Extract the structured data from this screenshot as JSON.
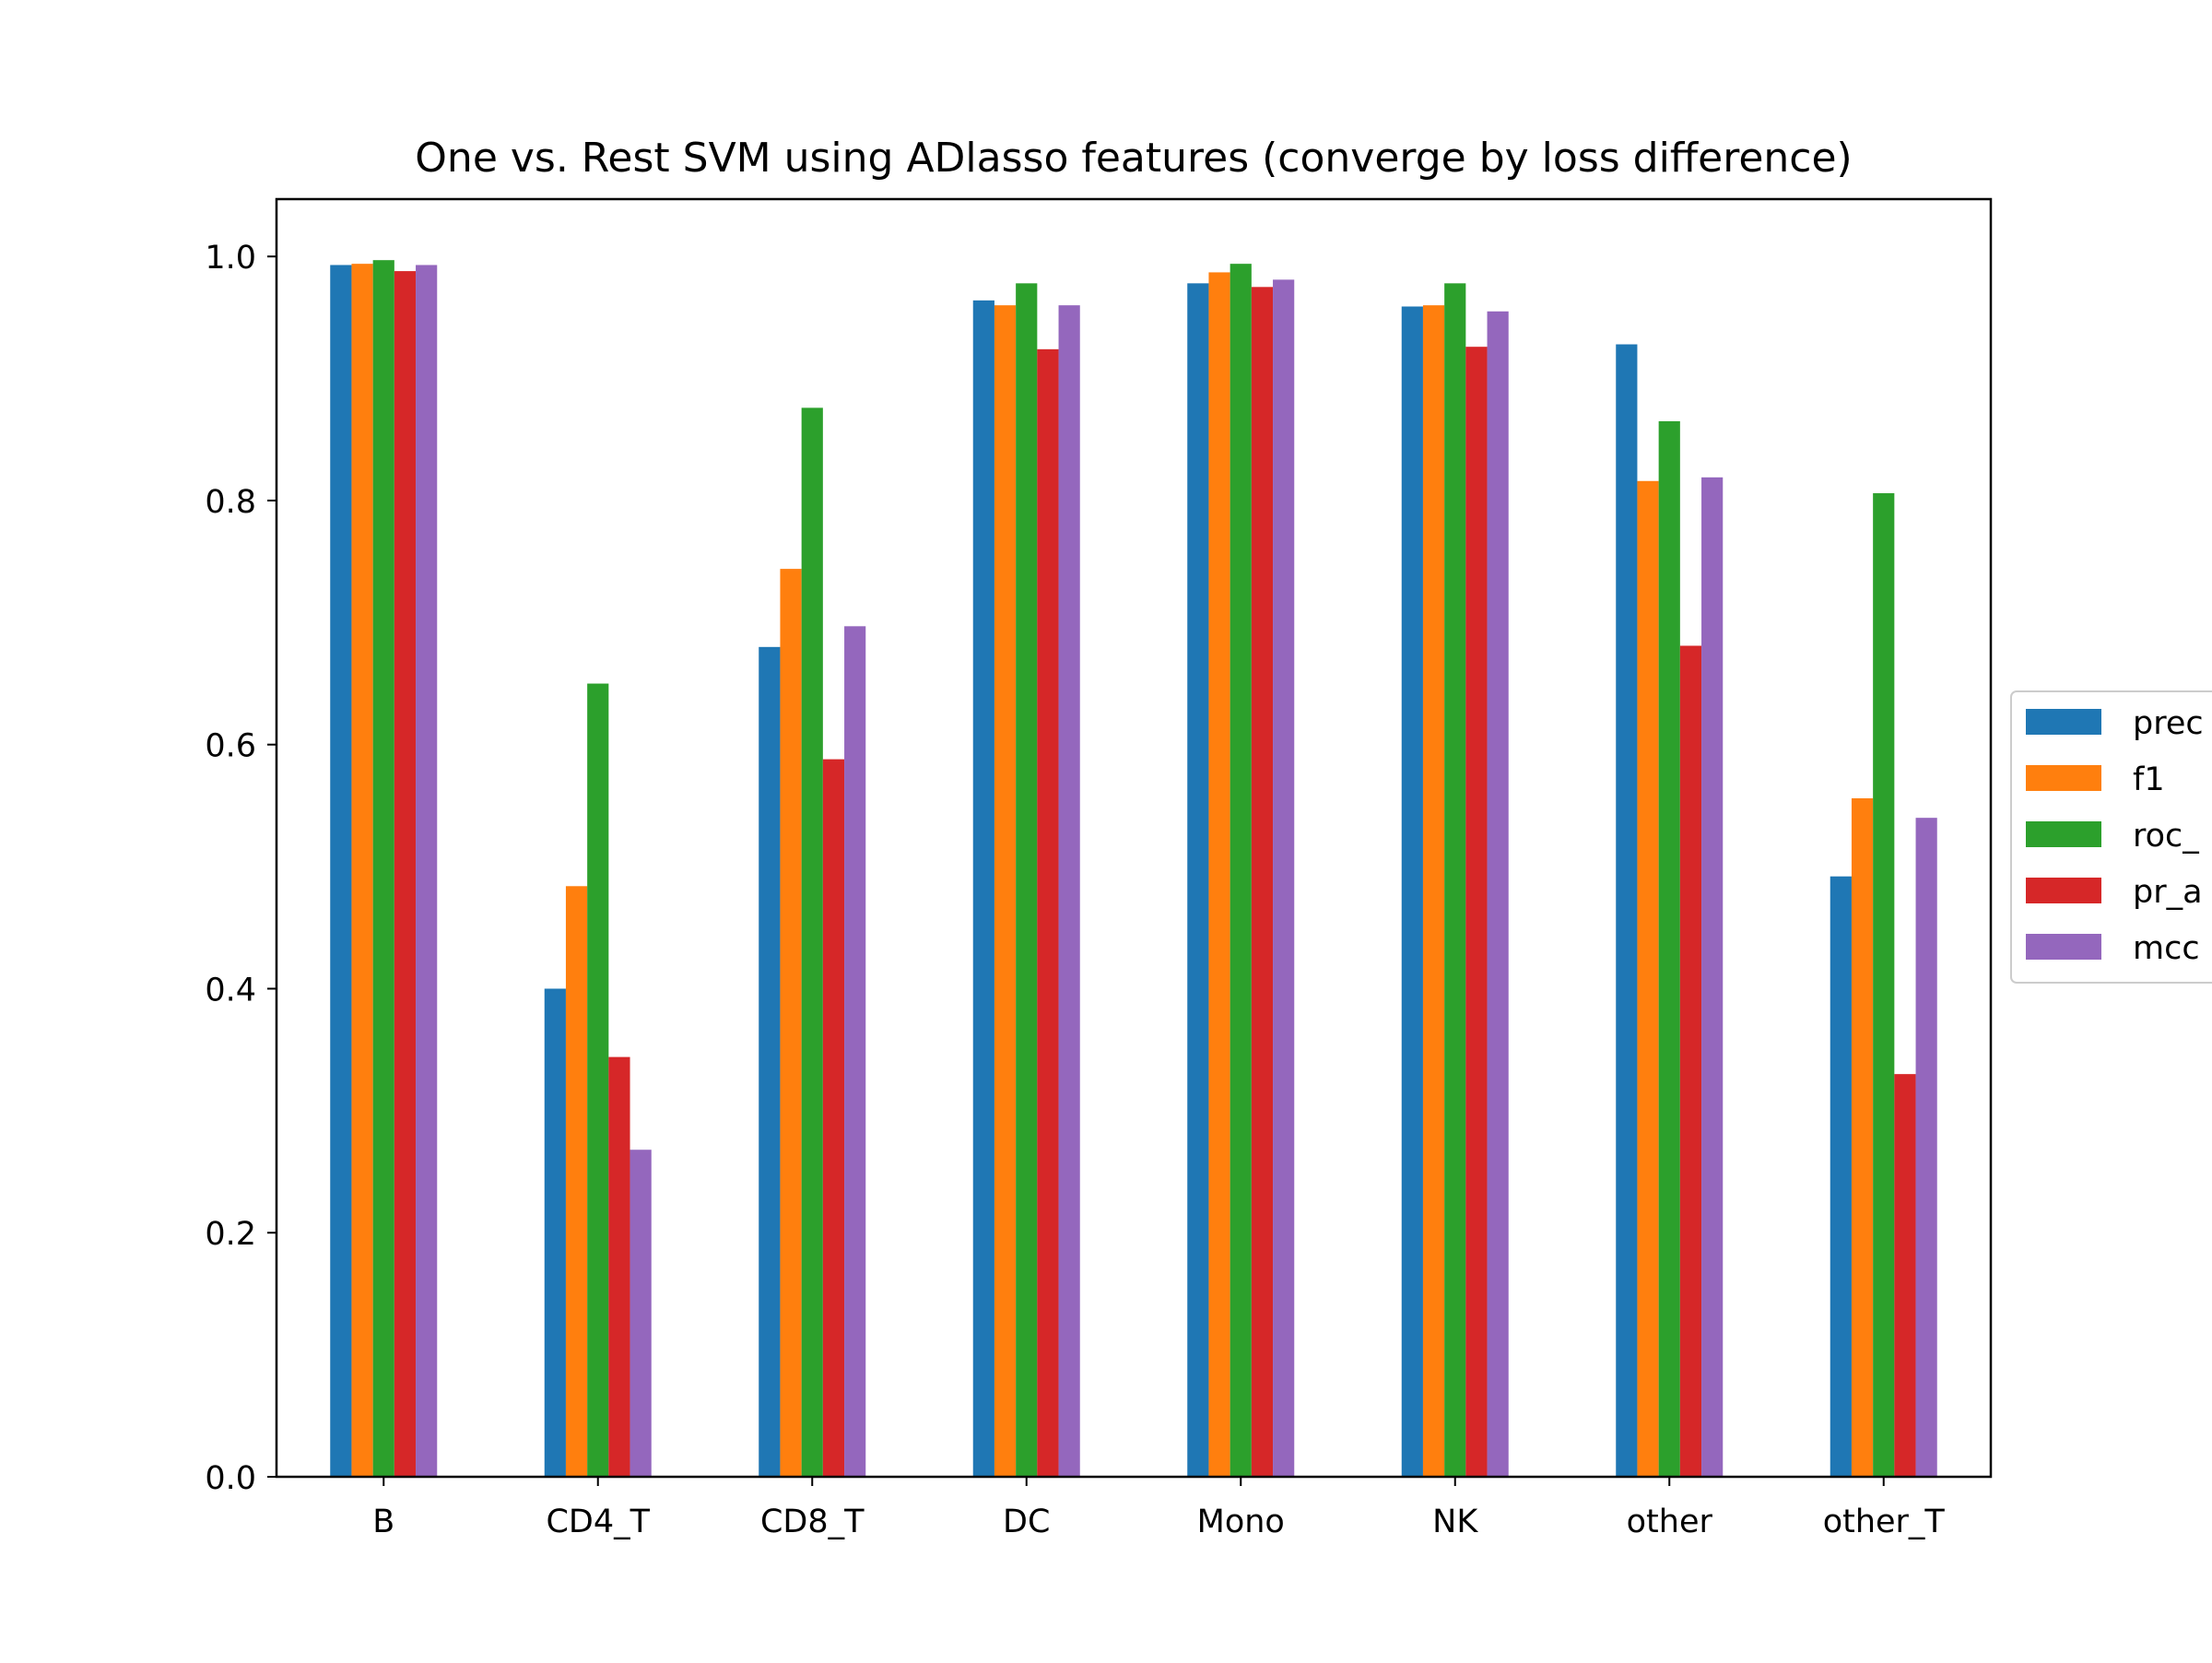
{
  "chart_data": {
    "type": "bar",
    "title": "One vs. Rest SVM using ADlasso features (converge by loss difference)",
    "xlabel": "",
    "ylabel": "",
    "categories": [
      "B",
      "CD4_T",
      "CD8_T",
      "DC",
      "Mono",
      "NK",
      "other",
      "other_T"
    ],
    "ylim": [
      0,
      1.047
    ],
    "yticks": [
      "0.0",
      "0.2",
      "0.4",
      "0.6",
      "0.8",
      "1.0"
    ],
    "grid": false,
    "legend_position": "center-right, partially cut off",
    "series": [
      {
        "name": "prec",
        "color": "#1f77b4",
        "values": [
          0.993,
          0.4,
          0.68,
          0.964,
          0.978,
          0.959,
          0.928,
          0.492
        ]
      },
      {
        "name": "f1",
        "color": "#ff7f0e",
        "values": [
          0.994,
          0.484,
          0.744,
          0.96,
          0.987,
          0.96,
          0.816,
          0.556
        ]
      },
      {
        "name": "roc_",
        "color": "#2ca02c",
        "values": [
          0.997,
          0.65,
          0.876,
          0.978,
          0.994,
          0.978,
          0.865,
          0.806
        ]
      },
      {
        "name": "pr_a",
        "color": "#d62728",
        "values": [
          0.988,
          0.344,
          0.588,
          0.924,
          0.975,
          0.926,
          0.681,
          0.33
        ]
      },
      {
        "name": "mcc",
        "color": "#9467bd",
        "values": [
          0.993,
          0.268,
          0.697,
          0.96,
          0.981,
          0.955,
          0.819,
          0.54
        ]
      }
    ]
  }
}
